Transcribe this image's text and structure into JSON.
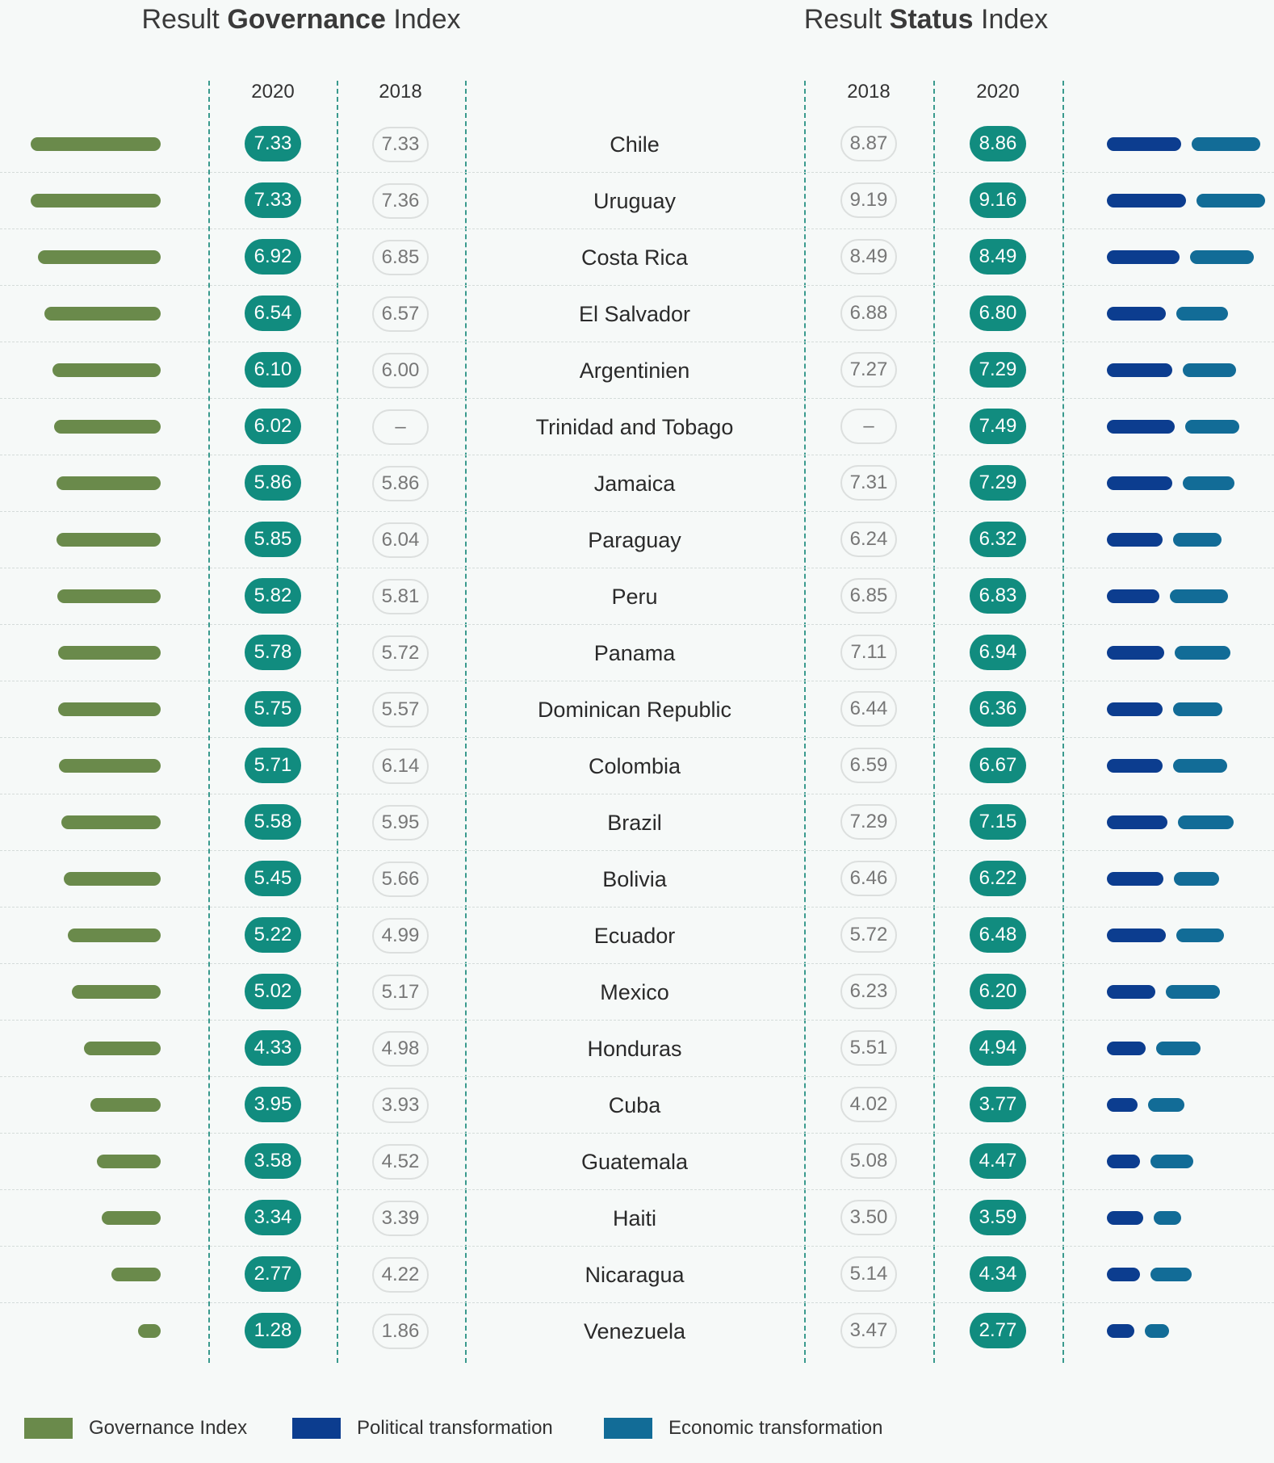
{
  "chart_data": {
    "type": "table",
    "titles": {
      "governance": {
        "prefix": "Result ",
        "bold": "Governance",
        "suffix": " Index"
      },
      "status": {
        "prefix": "Result ",
        "bold": "Status",
        "suffix": " Index"
      }
    },
    "column_headers": {
      "gov_2020": "2020",
      "gov_2018": "2018",
      "status_2018": "2018",
      "status_2020": "2020"
    },
    "rows": [
      {
        "country": "Chile",
        "gov_2020": "7.33",
        "gov_2018": "7.33",
        "status_2018": "8.87",
        "status_2020": "8.86",
        "political": 9.2,
        "economic": 8.5
      },
      {
        "country": "Uruguay",
        "gov_2020": "7.33",
        "gov_2018": "7.36",
        "status_2018": "9.19",
        "status_2020": "9.16",
        "political": 9.8,
        "economic": 8.5
      },
      {
        "country": "Costa Rica",
        "gov_2020": "6.92",
        "gov_2018": "6.85",
        "status_2018": "8.49",
        "status_2020": "8.49",
        "political": 9.0,
        "economic": 7.9
      },
      {
        "country": "El Salvador",
        "gov_2020": "6.54",
        "gov_2018": "6.57",
        "status_2018": "6.88",
        "status_2020": "6.80",
        "political": 7.3,
        "economic": 6.4
      },
      {
        "country": "Argentinien",
        "gov_2020": "6.10",
        "gov_2018": "6.00",
        "status_2018": "7.27",
        "status_2020": "7.29",
        "political": 8.1,
        "economic": 6.6
      },
      {
        "country": "Trinidad and Tobago",
        "gov_2020": "6.02",
        "gov_2018": "–",
        "status_2018": "–",
        "status_2020": "7.49",
        "political": 8.4,
        "economic": 6.7
      },
      {
        "country": "Jamaica",
        "gov_2020": "5.86",
        "gov_2018": "5.86",
        "status_2018": "7.31",
        "status_2020": "7.29",
        "political": 8.1,
        "economic": 6.4
      },
      {
        "country": "Paraguay",
        "gov_2020": "5.85",
        "gov_2018": "6.04",
        "status_2018": "6.24",
        "status_2020": "6.32",
        "political": 6.9,
        "economic": 6.0
      },
      {
        "country": "Peru",
        "gov_2020": "5.82",
        "gov_2018": "5.81",
        "status_2018": "6.85",
        "status_2020": "6.83",
        "political": 6.5,
        "economic": 7.2
      },
      {
        "country": "Panama",
        "gov_2020": "5.78",
        "gov_2018": "5.72",
        "status_2018": "7.11",
        "status_2020": "6.94",
        "political": 7.1,
        "economic": 6.9
      },
      {
        "country": "Dominican Republic",
        "gov_2020": "5.75",
        "gov_2018": "5.57",
        "status_2018": "6.44",
        "status_2020": "6.36",
        "political": 6.9,
        "economic": 6.1
      },
      {
        "country": "Colombia",
        "gov_2020": "5.71",
        "gov_2018": "6.14",
        "status_2018": "6.59",
        "status_2020": "6.67",
        "political": 6.9,
        "economic": 6.7
      },
      {
        "country": "Brazil",
        "gov_2020": "5.58",
        "gov_2018": "5.95",
        "status_2018": "7.29",
        "status_2020": "7.15",
        "political": 7.5,
        "economic": 6.9
      },
      {
        "country": "Bolivia",
        "gov_2020": "5.45",
        "gov_2018": "5.66",
        "status_2018": "6.46",
        "status_2020": "6.22",
        "political": 7.0,
        "economic": 5.6
      },
      {
        "country": "Ecuador",
        "gov_2020": "5.22",
        "gov_2018": "4.99",
        "status_2018": "5.72",
        "status_2020": "6.48",
        "political": 7.3,
        "economic": 5.9
      },
      {
        "country": "Mexico",
        "gov_2020": "5.02",
        "gov_2018": "5.17",
        "status_2018": "6.23",
        "status_2020": "6.20",
        "political": 6.0,
        "economic": 6.7
      },
      {
        "country": "Honduras",
        "gov_2020": "4.33",
        "gov_2018": "4.98",
        "status_2018": "5.51",
        "status_2020": "4.94",
        "political": 4.8,
        "economic": 5.5
      },
      {
        "country": "Cuba",
        "gov_2020": "3.95",
        "gov_2018": "3.93",
        "status_2018": "4.02",
        "status_2020": "3.77",
        "political": 3.8,
        "economic": 4.5
      },
      {
        "country": "Guatemala",
        "gov_2020": "3.58",
        "gov_2018": "4.52",
        "status_2018": "5.08",
        "status_2020": "4.47",
        "political": 4.1,
        "economic": 5.3
      },
      {
        "country": "Haiti",
        "gov_2020": "3.34",
        "gov_2018": "3.39",
        "status_2018": "3.50",
        "status_2020": "3.59",
        "political": 4.5,
        "economic": 3.4
      },
      {
        "country": "Nicaragua",
        "gov_2020": "2.77",
        "gov_2018": "4.22",
        "status_2018": "5.14",
        "status_2020": "4.34",
        "political": 4.1,
        "economic": 5.1
      },
      {
        "country": "Venezuela",
        "gov_2020": "1.28",
        "gov_2018": "1.86",
        "status_2018": "3.47",
        "status_2020": "2.77",
        "political": 3.4,
        "economic": 3.0
      }
    ],
    "legend": [
      {
        "label": "Governance Index",
        "color": "#6a8a4b"
      },
      {
        "label": "Political transformation",
        "color": "#0c3d8f"
      },
      {
        "label": "Economic transformation",
        "color": "#126c97"
      }
    ],
    "colors": {
      "accent": "#118c7f",
      "governance": "#6a8a4b",
      "political": "#0c3d8f",
      "economic": "#126c97"
    }
  }
}
